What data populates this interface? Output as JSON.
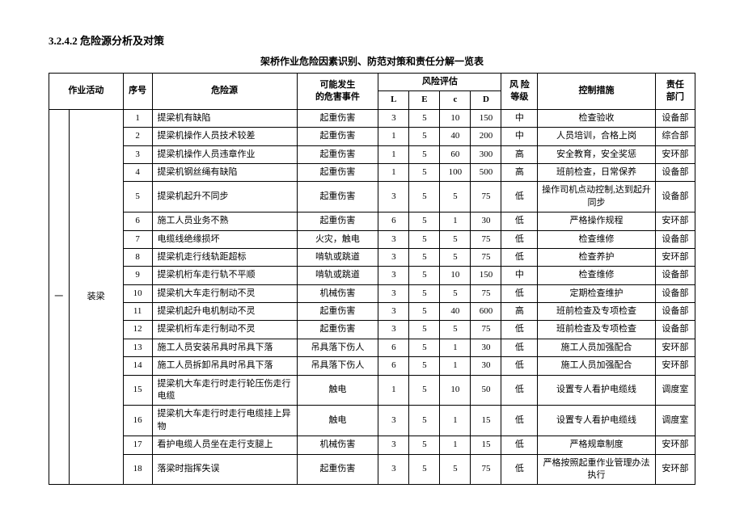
{
  "section_number": "3.2.4.2",
  "section_title": "危险源分析及对策",
  "table_title": "架桥作业危险因素识别、防范对策和责任分解一览表",
  "headers": {
    "activity": "作业活动",
    "seq": "序号",
    "hazard": "危险源",
    "possible_event": "可能发生\n的危害事件",
    "risk_eval": "风险评估",
    "risk_level": "风 险\n等级",
    "control": "控制措施",
    "dept": "责任\n部门",
    "L": "L",
    "E": "E",
    "c": "c",
    "D": "D"
  },
  "group": {
    "idx": "一",
    "activity": "装梁"
  },
  "rows": [
    {
      "seq": "1",
      "hazard": "提梁机有缺陷",
      "event": "起重伤害",
      "L": "3",
      "E": "5",
      "c": "10",
      "D": "150",
      "lvl": "中",
      "ctrl": "检查验收",
      "dept": "设备部"
    },
    {
      "seq": "2",
      "hazard": "提梁机操作人员技术较差",
      "event": "起重伤害",
      "L": "1",
      "E": "5",
      "c": "40",
      "D": "200",
      "lvl": "中",
      "ctrl": "人员培训，合格上岗",
      "dept": "综合部"
    },
    {
      "seq": "3",
      "hazard": "提梁机操作人员违章作业",
      "event": "起重伤害",
      "L": "1",
      "E": "5",
      "c": "60",
      "D": "300",
      "lvl": "高",
      "ctrl": "安全教育，安全奖惩",
      "dept": "安环部"
    },
    {
      "seq": "4",
      "hazard": "提梁机钢丝绳有缺陷",
      "event": "起重伤害",
      "L": "1",
      "E": "5",
      "c": "100",
      "D": "500",
      "lvl": "高",
      "ctrl": "班前检查，日常保养",
      "dept": "设备部"
    },
    {
      "seq": "5",
      "hazard": "提梁机起升不同步",
      "event": "起重伤害",
      "L": "3",
      "E": "5",
      "c": "5",
      "D": "75",
      "lvl": "低",
      "ctrl": "操作司机点动控制,达到起升同步",
      "dept": "设备部"
    },
    {
      "seq": "6",
      "hazard": "施工人员业务不熟",
      "event": "起重伤害",
      "L": "6",
      "E": "5",
      "c": "1",
      "D": "30",
      "lvl": "低",
      "ctrl": "严格操作规程",
      "dept": "安环部"
    },
    {
      "seq": "7",
      "hazard": "电缆线绝缘损坏",
      "event": "火灾，触电",
      "L": "3",
      "E": "5",
      "c": "5",
      "D": "75",
      "lvl": "低",
      "ctrl": "检查维修",
      "dept": "设备部"
    },
    {
      "seq": "8",
      "hazard": "提梁机走行线轨距超标",
      "event": "啃轨或跳道",
      "L": "3",
      "E": "5",
      "c": "5",
      "D": "75",
      "lvl": "低",
      "ctrl": "检查养护",
      "dept": "安环部"
    },
    {
      "seq": "9",
      "hazard": "提梁机桁车走行轨不平顺",
      "event": "啃轨或跳道",
      "L": "3",
      "E": "5",
      "c": "10",
      "D": "150",
      "lvl": "中",
      "ctrl": "检查维修",
      "dept": "设备部"
    },
    {
      "seq": "10",
      "hazard": "提梁机大车走行制动不灵",
      "event": "机械伤害",
      "L": "3",
      "E": "5",
      "c": "5",
      "D": "75",
      "lvl": "低",
      "ctrl": "定期检查维护",
      "dept": "设备部"
    },
    {
      "seq": "11",
      "hazard": "提梁机起升电机制动不灵",
      "event": "起重伤害",
      "L": "3",
      "E": "5",
      "c": "40",
      "D": "600",
      "lvl": "高",
      "ctrl": "班前检查及专项检查",
      "dept": "设备部"
    },
    {
      "seq": "12",
      "hazard": "提梁机桁车走行制动不灵",
      "event": "起重伤害",
      "L": "3",
      "E": "5",
      "c": "5",
      "D": "75",
      "lvl": "低",
      "ctrl": "班前检查及专项检查",
      "dept": "设备部"
    },
    {
      "seq": "13",
      "hazard": "施工人员安装吊具时吊具下落",
      "event": "吊具落下伤人",
      "L": "6",
      "E": "5",
      "c": "1",
      "D": "30",
      "lvl": "低",
      "ctrl": "施工人员加强配合",
      "dept": "安环部"
    },
    {
      "seq": "14",
      "hazard": "施工人员拆卸吊具时吊具下落",
      "event": "吊具落下伤人",
      "L": "6",
      "E": "5",
      "c": "1",
      "D": "30",
      "lvl": "低",
      "ctrl": "施工人员加强配合",
      "dept": "安环部"
    },
    {
      "seq": "15",
      "hazard": "提梁机大车走行时走行轮压伤走行电缆",
      "event": "触电",
      "L": "1",
      "E": "5",
      "c": "10",
      "D": "50",
      "lvl": "低",
      "ctrl": "设置专人看护电缆线",
      "dept": "调度室"
    },
    {
      "seq": "16",
      "hazard": "提梁机大车走行时走行电缆挂上异物",
      "event": "触电",
      "L": "3",
      "E": "5",
      "c": "1",
      "D": "15",
      "lvl": "低",
      "ctrl": "设置专人看护电缆线",
      "dept": "调度室"
    },
    {
      "seq": "17",
      "hazard": "看护电缆人员坐在走行支腿上",
      "event": "机械伤害",
      "L": "3",
      "E": "5",
      "c": "1",
      "D": "15",
      "lvl": "低",
      "ctrl": "严格规章制度",
      "dept": "安环部"
    },
    {
      "seq": "18",
      "hazard": "落梁时指挥失误",
      "event": "起重伤害",
      "L": "3",
      "E": "5",
      "c": "5",
      "D": "75",
      "lvl": "低",
      "ctrl": "严格按照起重作业管理办法执行",
      "dept": "安环部"
    }
  ]
}
